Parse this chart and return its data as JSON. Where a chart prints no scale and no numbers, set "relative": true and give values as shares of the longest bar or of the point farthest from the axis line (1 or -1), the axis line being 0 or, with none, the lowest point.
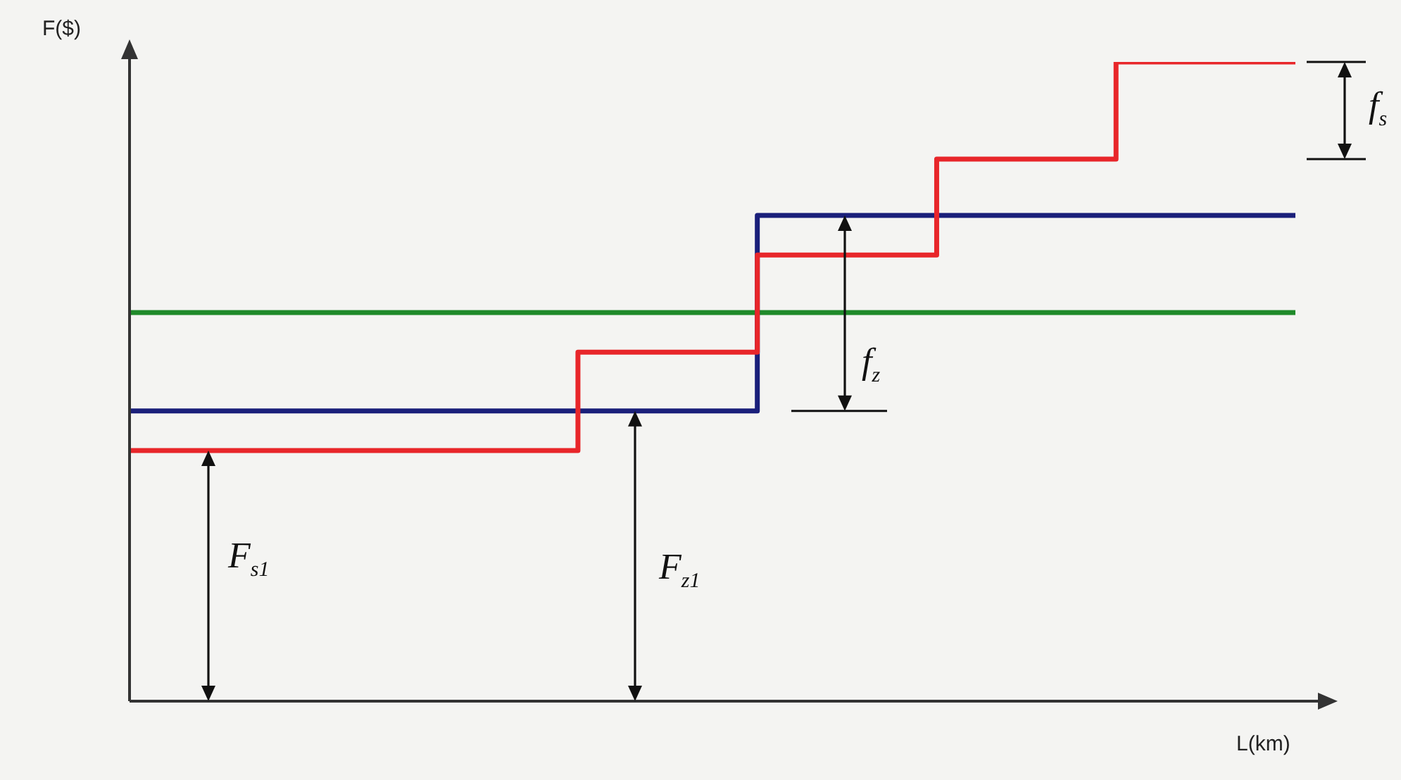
{
  "chart_data": {
    "type": "step",
    "xlabel": "L(km)",
    "ylabel": "F($)",
    "relative": true,
    "tick_labels": false,
    "categories": [
      null,
      null,
      null,
      null,
      null,
      null,
      null,
      null,
      null,
      null,
      null,
      null,
      null,
      null
    ],
    "series": [
      {
        "color": "#e8262a",
        "values": [
          0.392,
          0.392,
          0.392,
          0.392,
          0.392,
          0.546,
          0.546,
          0.698,
          0.698,
          0.848,
          0.848,
          1,
          1,
          1
        ]
      },
      {
        "color": "#1a1f7a",
        "values": [
          0.454,
          0.454,
          0.454,
          0.454,
          0.454,
          0.454,
          0.454,
          0.76,
          0.76,
          0.76,
          0.76,
          0.76,
          0.76,
          0.76
        ]
      },
      {
        "color": "#1f8a2a",
        "values": [
          0.608,
          0.608,
          0.608,
          0.608,
          0.608,
          0.608,
          0.608,
          0.608,
          0.608,
          0.608,
          0.608,
          0.608,
          0.608,
          0.608
        ]
      }
    ],
    "annotations": [
      "F$_{s1}$",
      "F$_{z1}$",
      "f$_{z}$",
      "f$_{s}$"
    ]
  }
}
